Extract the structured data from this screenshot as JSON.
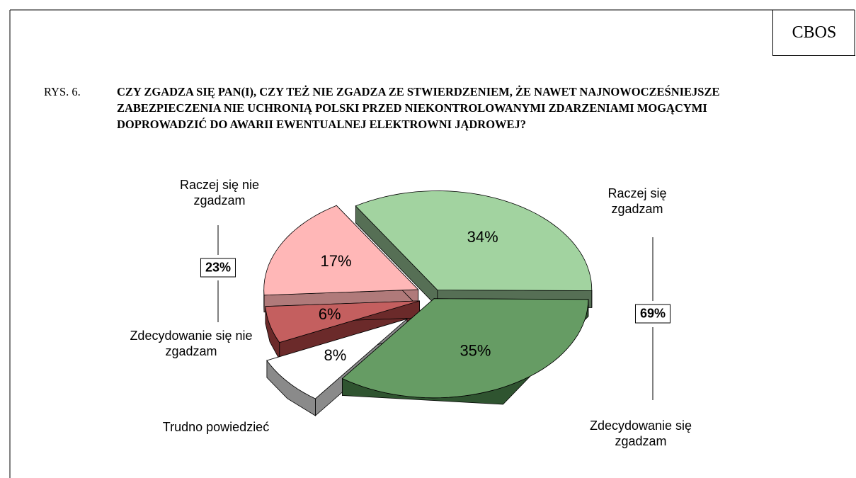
{
  "chart_data": {
    "type": "pie3d",
    "source": "CBOS",
    "figure_label": "RYS. 6.",
    "title": "CZY ZGADZA SIĘ PAN(I), CZY TEŻ NIE ZGADZA ZE STWIERDZENIEM, ŻE NAWET NAJNOWOCZEŚNIEJSZE ZABEZPIECZENIA NIE UCHRONIĄ POLSKI PRZED NIEKONTROLOWANYMI ZDARZENIAMI MOGĄCYMI DOPROWADZIĆ DO AWARII EWENTUALNEJ ELEKTROWNI JĄDROWEJ?",
    "categories": [
      "Raczej się zgadzam",
      "Zdecydowanie się zgadzam",
      "Trudno powiedzieć",
      "Zdecydowanie się nie zgadzam",
      "Raczej się nie zgadzam"
    ],
    "values": [
      34,
      35,
      8,
      6,
      17
    ],
    "value_labels": [
      "34%",
      "35%",
      "8%",
      "6%",
      "17%"
    ],
    "colors": [
      "#a2d3a0",
      "#669c64",
      "#ffffff",
      "#c45f5f",
      "#ffb7b7"
    ],
    "side_colors": [
      "#566f55",
      "#2f5430",
      "#8a8a8a",
      "#6b2a2a",
      "#b07a7a"
    ],
    "groups": {
      "values": [
        69,
        23
      ],
      "value_labels": [
        "69%",
        "23%"
      ]
    }
  }
}
